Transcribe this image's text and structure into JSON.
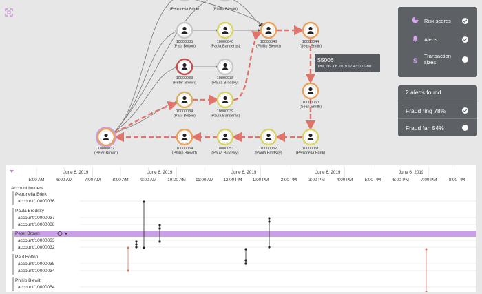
{
  "graph": {
    "nodes": [
      {
        "id": "n-t1",
        "account": "10000036",
        "holder": "Petronella Brink",
        "ring": "#c8c8c8"
      },
      {
        "id": "n-t2",
        "account": "10000041",
        "holder": "Phillip Blewitt",
        "ring": "#c8c8c8"
      },
      {
        "id": "n-35",
        "account": "10000035",
        "holder": "Paul Bolton",
        "ring": "#c8c8c8"
      },
      {
        "id": "n-40",
        "account": "10000040",
        "holder": "Paula Banderas",
        "ring": "#d8d46a"
      },
      {
        "id": "n-43",
        "account": "10000043",
        "holder": "Phillip Blewitt",
        "ring": "#e8a25d"
      },
      {
        "id": "n-44",
        "account": "10000044",
        "holder": "Sean Smith",
        "ring": "#e8a25d"
      },
      {
        "id": "n-33",
        "account": "10000033",
        "holder": "Peter Brown",
        "ring": "#c0504d"
      },
      {
        "id": "n-38",
        "account": "10000038",
        "holder": "Paula Brodsky",
        "ring": "#c8c8c8"
      },
      {
        "id": "n-34",
        "account": "10000034",
        "holder": "Paul Bolton",
        "ring": "#d7b368"
      },
      {
        "id": "n-39",
        "account": "10000039",
        "holder": "Paula Banderas",
        "ring": "#d8d46a"
      },
      {
        "id": "n-50",
        "account": "10000050",
        "holder": "Sean Smith",
        "ring": "#e8a25d"
      },
      {
        "id": "n-32",
        "account": "10000032",
        "holder": "Peter Brown",
        "ring": "#e8a25d"
      },
      {
        "id": "n-54",
        "account": "10000054",
        "holder": "Phillip Blewitt",
        "ring": "#e8a25d"
      },
      {
        "id": "n-53",
        "account": "10000053",
        "holder": "Paula Brodsky",
        "ring": "#d8d46a"
      },
      {
        "id": "n-52",
        "account": "10000052",
        "holder": "Paula Brodsky",
        "ring": "#d8d46a"
      },
      {
        "id": "n-51",
        "account": "10000051",
        "holder": "Petronella Brink",
        "ring": "#d8d46a"
      }
    ]
  },
  "tooltip": {
    "amount": "$5006",
    "timestamp": "Thu, 06 Jun 2019 17:43:00 GMT"
  },
  "layers": [
    {
      "label": "Risk scores",
      "icon": "pie-chart-icon",
      "checked": true
    },
    {
      "label": "Alerts",
      "icon": "bell-icon",
      "checked": true
    },
    {
      "label": "Transaction sizes",
      "icon": "dollar-icon",
      "checked": false
    }
  ],
  "alerts": {
    "title": "2 alerts found",
    "items": [
      {
        "label": "Fraud ring 78%",
        "checked": true
      },
      {
        "label": "Fraud fan 54%",
        "checked": false
      }
    ]
  },
  "timeline": {
    "dates": [
      "June 6, 2019",
      "June 6, 2019",
      "June 6, 2019",
      "June 6, 2019",
      "June 6, 2019"
    ],
    "times": [
      "5:00 AM",
      "6:00 AM",
      "7:00 AM",
      "8:00 AM",
      "9:00 AM",
      "10:00 AM",
      "11:00 AM",
      "12:00 PM",
      "1:00 PM",
      "2:00 PM",
      "3:00 PM",
      "4:00 PM",
      "5:00 PM",
      "6:00 PM",
      "7:00 PM",
      "8:00 PM"
    ],
    "group_title": "Account holders",
    "rows": [
      {
        "text": "Petronella Brink",
        "kind": "holder"
      },
      {
        "text": "account/10000036",
        "kind": "account"
      },
      {
        "text": "Paula Brodsky",
        "kind": "holder"
      },
      {
        "text": "account/10000037",
        "kind": "account"
      },
      {
        "text": "account/10000038",
        "kind": "account"
      },
      {
        "text": "Peter Brown",
        "kind": "holder-selected"
      },
      {
        "text": "account/10000033",
        "kind": "account"
      },
      {
        "text": "account/10000032",
        "kind": "account"
      },
      {
        "text": "Paul Bolton",
        "kind": "holder"
      },
      {
        "text": "account/10000035",
        "kind": "account"
      },
      {
        "text": "account/10000034",
        "kind": "account"
      },
      {
        "text": "Phillip Blewitt",
        "kind": "holder"
      },
      {
        "text": "account/10000054",
        "kind": "account"
      }
    ]
  },
  "colors": {
    "accent_purple": "#c9a0e8",
    "dashed_edge": "#e0746a",
    "panel": "#5d6166"
  }
}
